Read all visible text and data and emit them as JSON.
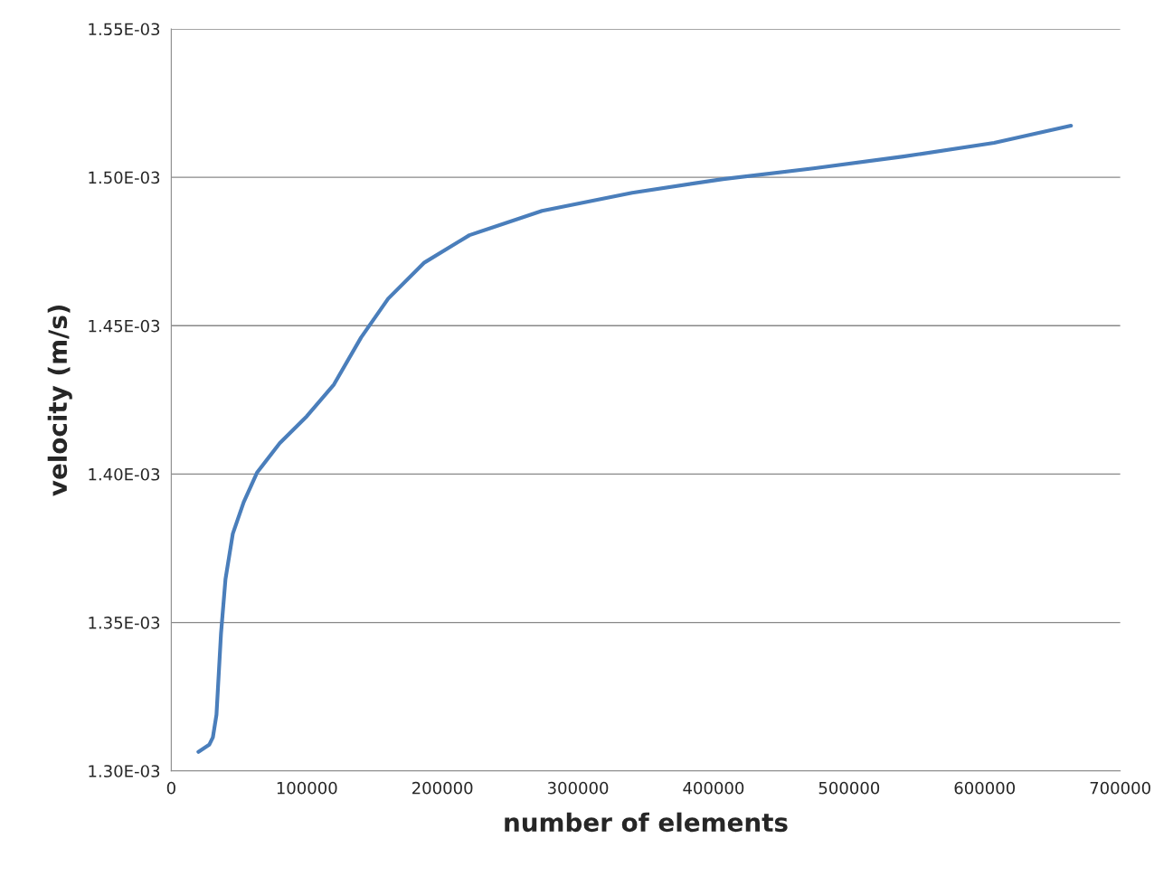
{
  "chart_data": {
    "type": "line",
    "xlabel": "number of elements",
    "ylabel": "velocity (m/s)",
    "x": [
      20000,
      28000,
      30700,
      33350,
      36700,
      40000,
      45400,
      53400,
      63400,
      80000,
      100000,
      120000,
      140000,
      160000,
      186800,
      220000,
      273500,
      340000,
      407000,
      473600,
      540000,
      607000,
      663700
    ],
    "series": [
      {
        "color": "#4a7ebb",
        "values": [
          0.0013064,
          0.0013088,
          0.0013113,
          0.0013189,
          0.0013463,
          0.0013646,
          0.0013799,
          0.0013905,
          0.0014006,
          0.0014104,
          0.0014195,
          0.0014302,
          0.001446,
          0.0014591,
          0.0014713,
          0.0014805,
          0.0014887,
          0.0014948,
          0.0014994,
          0.001503,
          0.001507,
          0.0015116,
          0.0015174
        ]
      }
    ],
    "xlim": [
      0,
      700000
    ],
    "xticks": [
      0,
      100000,
      200000,
      300000,
      400000,
      500000,
      600000,
      700000
    ],
    "ylim": [
      0.0013,
      0.00155
    ],
    "yticks": [
      {
        "value": 0.0013,
        "label": "1.30E-03"
      },
      {
        "value": 0.00135,
        "label": "1.35E-03"
      },
      {
        "value": 0.0014,
        "label": "1.40E-03"
      },
      {
        "value": 0.00145,
        "label": "1.45E-03"
      },
      {
        "value": 0.0015,
        "label": "1.50E-03"
      },
      {
        "value": 0.00155,
        "label": "1.55E-03"
      }
    ],
    "grid": "y",
    "marker": "none",
    "line_style": "solid"
  }
}
